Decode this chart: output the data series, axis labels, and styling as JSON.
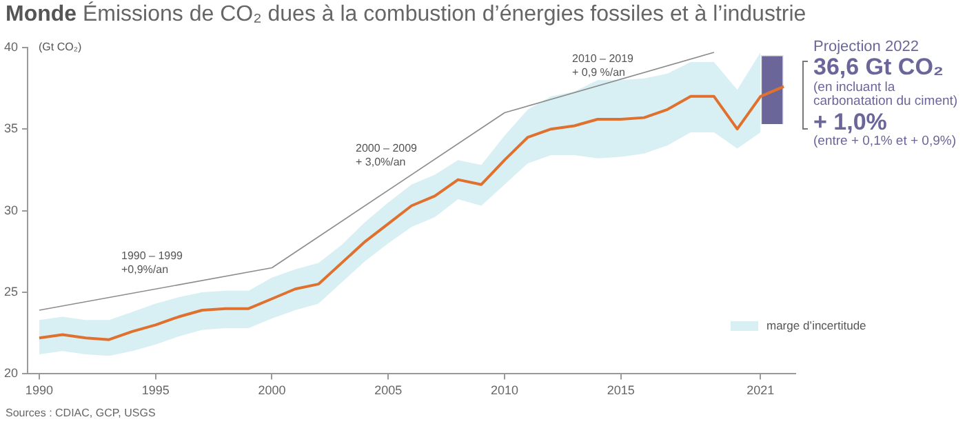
{
  "chart_data": {
    "type": "line",
    "title": "Monde Émissions de CO₂ dues à la combustion d’énergies fossiles et à l’industrie",
    "ylabel": "(Gt CO₂)",
    "xlim": [
      1989.5,
      2022.5
    ],
    "xticks": [
      1990,
      1995,
      2000,
      2005,
      2010,
      2015,
      2021
    ],
    "ylim": [
      20,
      40
    ],
    "yticks": [
      20,
      25,
      30,
      35,
      40
    ],
    "series": [
      {
        "color": "#e0702e",
        "x": [
          1990,
          1991,
          1992,
          1993,
          1994,
          1995,
          1996,
          1997,
          1998,
          1999,
          2000,
          2001,
          2002,
          2003,
          2004,
          2005,
          2006,
          2007,
          2008,
          2009,
          2010,
          2011,
          2012,
          2013,
          2014,
          2015,
          2016,
          2017,
          2018,
          2019,
          2020,
          2021,
          2022
        ],
        "values": [
          22.2,
          22.4,
          22.2,
          22.1,
          22.6,
          23.0,
          23.5,
          23.9,
          24.0,
          24.0,
          24.6,
          25.2,
          25.5,
          26.8,
          28.1,
          29.2,
          30.3,
          30.9,
          31.9,
          31.6,
          33.1,
          34.5,
          35.0,
          35.2,
          35.6,
          35.6,
          35.7,
          36.2,
          37.0,
          37.0,
          35.0,
          37.0,
          37.6
        ],
        "lower": [
          21.2,
          21.4,
          21.2,
          21.1,
          21.4,
          21.8,
          22.3,
          22.7,
          22.8,
          22.8,
          23.4,
          23.9,
          24.3,
          25.6,
          26.9,
          28.0,
          29.0,
          29.6,
          30.7,
          30.3,
          31.6,
          32.9,
          33.4,
          33.4,
          33.2,
          33.3,
          33.5,
          34.0,
          34.8,
          34.8,
          33.8,
          34.8,
          null
        ],
        "upper": [
          23.3,
          23.5,
          23.3,
          23.3,
          23.8,
          24.3,
          24.7,
          25.0,
          25.1,
          25.1,
          25.9,
          26.4,
          26.8,
          27.9,
          29.3,
          30.5,
          31.6,
          32.2,
          33.1,
          32.8,
          34.6,
          36.2,
          37.0,
          37.3,
          38.0,
          38.0,
          38.1,
          38.4,
          39.1,
          39.1,
          37.4,
          39.7,
          null
        ]
      },
      {
        "type": "line",
        "color": "#8c8c8c",
        "x": [
          1990,
          2000,
          2010,
          2019
        ],
        "values": [
          23.9,
          26.5,
          36.0,
          39.7
        ]
      },
      {
        "type": "bar",
        "color": "#6b6699",
        "x": [
          2021.5
        ],
        "base": [
          35.3
        ],
        "values": [
          4.2
        ]
      }
    ],
    "annotations": [
      "1990 – 1999\n+0,9%/an",
      "2000 – 2009\n+ 3,0%/an",
      "2010 – 2019\n+ 0,9 %/an",
      "marge d’incertitude",
      "Projection 2022",
      "36,6 Gt CO₂",
      "(en incluant la carbonatation du ciment)",
      "+ 1,0%",
      "(entre + 0,1% et + 0,9%)",
      "Sources : CDIAC, GCP, USGS"
    ]
  }
}
